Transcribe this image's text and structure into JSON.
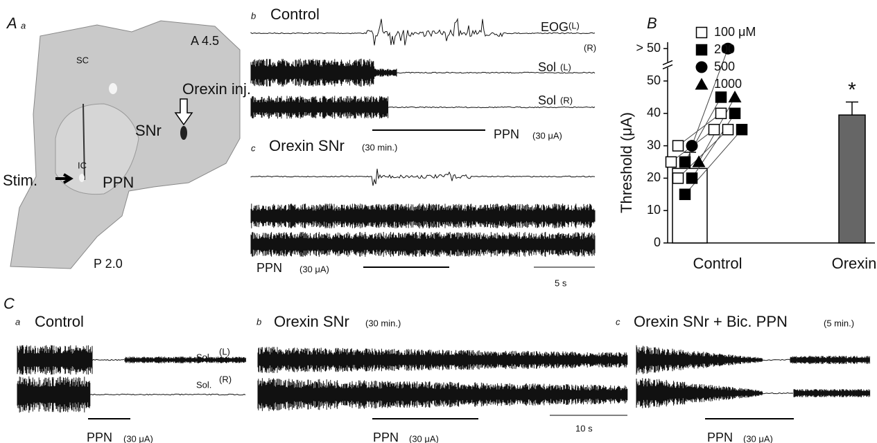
{
  "panel_A": {
    "letter": "A",
    "sub": "a",
    "level_top": "A 4.5",
    "level_bottom": "P 2.0",
    "labels": {
      "sc": "SC",
      "ic": "IC",
      "injection": "Orexin inj.",
      "snr": "SNr",
      "stim": "Stim.",
      "ppn": "PPN"
    }
  },
  "panel_Ab": {
    "sub": "b",
    "title": "Control",
    "eog": "EOG",
    "eog_left": "(L)",
    "eog_right": "(R)",
    "sol_left": "Sol",
    "sol_left_side": "(L)",
    "sol_right": "Sol",
    "sol_right_side": "(R)",
    "stim": "PPN",
    "stim_current": "(30 μA)"
  },
  "panel_Ac": {
    "sub": "c",
    "title": "Orexin SNr",
    "time": "(30 min.)",
    "stim": "PPN",
    "stim_current": "(30 μA)",
    "scale": "5 s"
  },
  "panel_C": {
    "letter": "C",
    "a": {
      "sub": "a",
      "title": "Control",
      "sol_left": "Sol.",
      "sol_left_side": "(L)",
      "sol_right": "Sol.",
      "sol_right_side": "(R)",
      "stim": "PPN",
      "stim_current": "(30 μA)"
    },
    "b": {
      "sub": "b",
      "title": "Orexin SNr",
      "time": "(30 min.)",
      "stim": "PPN",
      "stim_current": "(30 μA)",
      "scale": "10 s"
    },
    "c": {
      "sub": "c",
      "title": "Orexin SNr + Bic. PPN",
      "time": "(5 min.)",
      "stim": "PPN",
      "stim_current": "(30 μA)"
    }
  },
  "chart_data": {
    "type": "bar",
    "panel": "B",
    "y_label": "Threshold (μA)",
    "categories": [
      "Control",
      "Orexin"
    ],
    "values": [
      23,
      39.5
    ],
    "errors": [
      5,
      4
    ],
    "colors": [
      "#ffffff",
      "#666666"
    ],
    "ylim": [
      0,
      62
    ],
    "yticks": [
      0,
      10,
      20,
      30,
      40,
      50,
      {
        "value": 60,
        "label": "> 50"
      }
    ],
    "axis_break": true,
    "annotation": "*",
    "series": [
      {
        "name": "100 μM",
        "marker": "open-square",
        "control": [
          30,
          25,
          20
        ],
        "orexin": [
          40,
          35,
          35
        ]
      },
      {
        "name": "200",
        "marker": "filled-square",
        "control": [
          25,
          20,
          15
        ],
        "orexin": [
          45,
          40,
          35
        ]
      },
      {
        "name": "500",
        "marker": "circle",
        "control": [
          30
        ],
        "orexin": [
          60
        ]
      },
      {
        "name": "1000",
        "marker": "triangle",
        "control": [
          25
        ],
        "orexin": [
          45
        ]
      }
    ]
  }
}
